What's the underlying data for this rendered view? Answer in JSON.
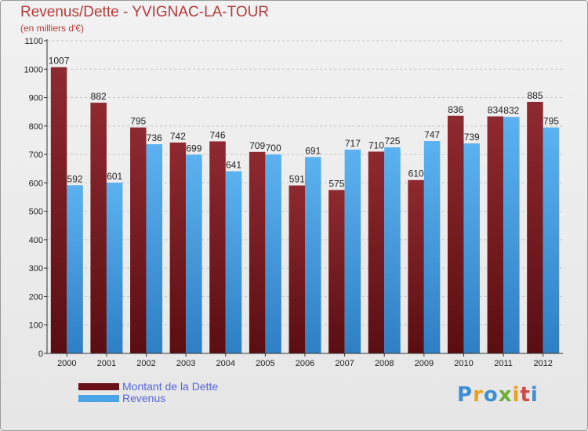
{
  "title": "Revenus/Dette - YVIGNAC-LA-TOUR",
  "subtitle": "(en milliers d'€)",
  "logo": {
    "letters": [
      "P",
      "r",
      "o",
      "x",
      "i",
      "t",
      "i"
    ]
  },
  "colors": {
    "debt": "#7a1e24",
    "revenue": "#4aa3e6",
    "title": "#b53a3a",
    "legend_text": "#5566dd",
    "logo": [
      "#3a8fd6",
      "#e8a020",
      "#3a8fd6",
      "#6ab030",
      "#e8a020",
      "#d04848",
      "#3a8fd6"
    ]
  },
  "chart_data": {
    "type": "bar",
    "title": "Revenus/Dette - YVIGNAC-LA-TOUR",
    "subtitle": "(en milliers d'€)",
    "categories": [
      "2000",
      "2001",
      "2002",
      "2003",
      "2004",
      "2005",
      "2006",
      "2007",
      "2008",
      "2009",
      "2010",
      "2011",
      "2012"
    ],
    "series": [
      {
        "name": "Montant de la Dette",
        "values": [
          1007,
          882,
          795,
          742,
          746,
          709,
          591,
          575,
          710,
          610,
          836,
          834,
          885
        ]
      },
      {
        "name": "Revenus",
        "values": [
          592,
          601,
          736,
          699,
          641,
          700,
          691,
          717,
          725,
          747,
          739,
          832,
          795
        ]
      }
    ],
    "yticks": [
      0,
      100,
      200,
      300,
      400,
      500,
      600,
      700,
      800,
      900,
      1000,
      1100
    ],
    "ylim": [
      0,
      1100
    ],
    "grid": true,
    "legend_position": "bottom-left"
  }
}
